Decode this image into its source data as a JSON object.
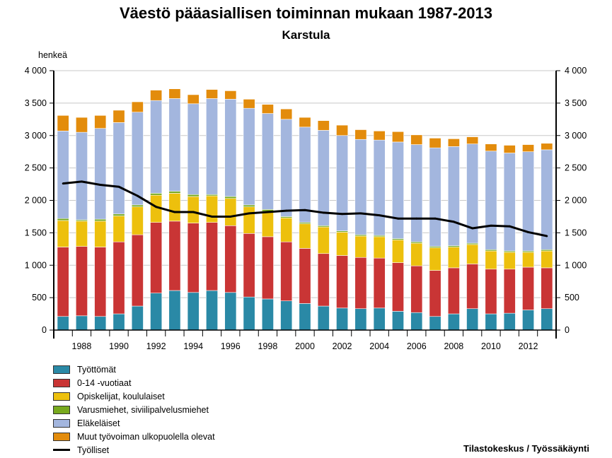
{
  "title": "Väestö pääasiallisen toiminnan mukaan 1987-2013",
  "subtitle": "Karstula",
  "source": "Tilastokeskus / Työssäkäynti",
  "chart_data": {
    "type": "bar",
    "stacked": true,
    "title": "Väestö pääasiallisen toiminnan mukaan 1987-2013",
    "subtitle": "Karstula",
    "ylabel": "henkeä",
    "ylim": [
      0,
      4000
    ],
    "yticks": [
      0,
      500,
      1000,
      1500,
      2000,
      2500,
      3000,
      3500,
      4000
    ],
    "ytick_labels": [
      "0",
      "500",
      "1 000",
      "1 500",
      "2 000",
      "2 500",
      "3 000",
      "3 500",
      "4 000"
    ],
    "categories": [
      1987,
      1988,
      1989,
      1990,
      1991,
      1992,
      1993,
      1994,
      1995,
      1996,
      1997,
      1998,
      1999,
      2000,
      2001,
      2002,
      2003,
      2004,
      2005,
      2006,
      2007,
      2008,
      2009,
      2010,
      2011,
      2012,
      2013
    ],
    "xtick_labels": [
      "1988",
      "1990",
      "1992",
      "1994",
      "1996",
      "1998",
      "2000",
      "2002",
      "2004",
      "2006",
      "2008",
      "2010",
      "2012"
    ],
    "grid": "horizontal",
    "legend_position": "bottom-left",
    "series": [
      {
        "name": "Työttömät",
        "color": "#2a89a6",
        "values": [
          210,
          220,
          210,
          250,
          370,
          570,
          610,
          580,
          610,
          580,
          510,
          480,
          450,
          410,
          370,
          340,
          330,
          340,
          290,
          270,
          210,
          250,
          330,
          250,
          260,
          310,
          330
        ]
      },
      {
        "name": "0-14 -vuotiaat",
        "color": "#c93535",
        "values": [
          1070,
          1070,
          1070,
          1110,
          1100,
          1090,
          1070,
          1070,
          1050,
          1030,
          980,
          960,
          910,
          850,
          810,
          810,
          790,
          770,
          750,
          720,
          710,
          710,
          690,
          690,
          680,
          660,
          630
        ]
      },
      {
        "name": "Opiskelijat, koululaiset",
        "color": "#edc00d",
        "values": [
          410,
          390,
          400,
          400,
          430,
          420,
          430,
          410,
          410,
          420,
          410,
          390,
          370,
          380,
          410,
          360,
          330,
          330,
          350,
          350,
          350,
          320,
          300,
          280,
          260,
          230,
          260
        ]
      },
      {
        "name": "Varusmiehet, siviilipalvelusmiehet",
        "color": "#78aa1e",
        "values": [
          30,
          20,
          30,
          30,
          30,
          30,
          30,
          30,
          20,
          30,
          30,
          30,
          20,
          20,
          20,
          20,
          20,
          20,
          20,
          20,
          20,
          20,
          20,
          20,
          20,
          20,
          20
        ]
      },
      {
        "name": "Eläkeläiset",
        "color": "#a3b6de",
        "values": [
          1350,
          1350,
          1400,
          1410,
          1430,
          1430,
          1430,
          1400,
          1480,
          1500,
          1490,
          1480,
          1500,
          1470,
          1470,
          1470,
          1470,
          1470,
          1490,
          1500,
          1520,
          1530,
          1530,
          1520,
          1510,
          1530,
          1540
        ]
      },
      {
        "name": "Muut työvoiman ulkopuolella olevat",
        "color": "#e38c0c",
        "values": [
          240,
          230,
          200,
          190,
          160,
          160,
          150,
          140,
          140,
          130,
          140,
          140,
          160,
          150,
          150,
          160,
          150,
          140,
          160,
          150,
          150,
          120,
          110,
          110,
          120,
          110,
          100
        ]
      }
    ],
    "line_series": [
      {
        "name": "Työlliset",
        "color": "#000000",
        "values": [
          2260,
          2290,
          2240,
          2210,
          2070,
          1900,
          1820,
          1820,
          1750,
          1750,
          1800,
          1820,
          1840,
          1850,
          1810,
          1790,
          1800,
          1770,
          1720,
          1720,
          1720,
          1670,
          1570,
          1610,
          1600,
          1510,
          1450
        ]
      }
    ]
  }
}
